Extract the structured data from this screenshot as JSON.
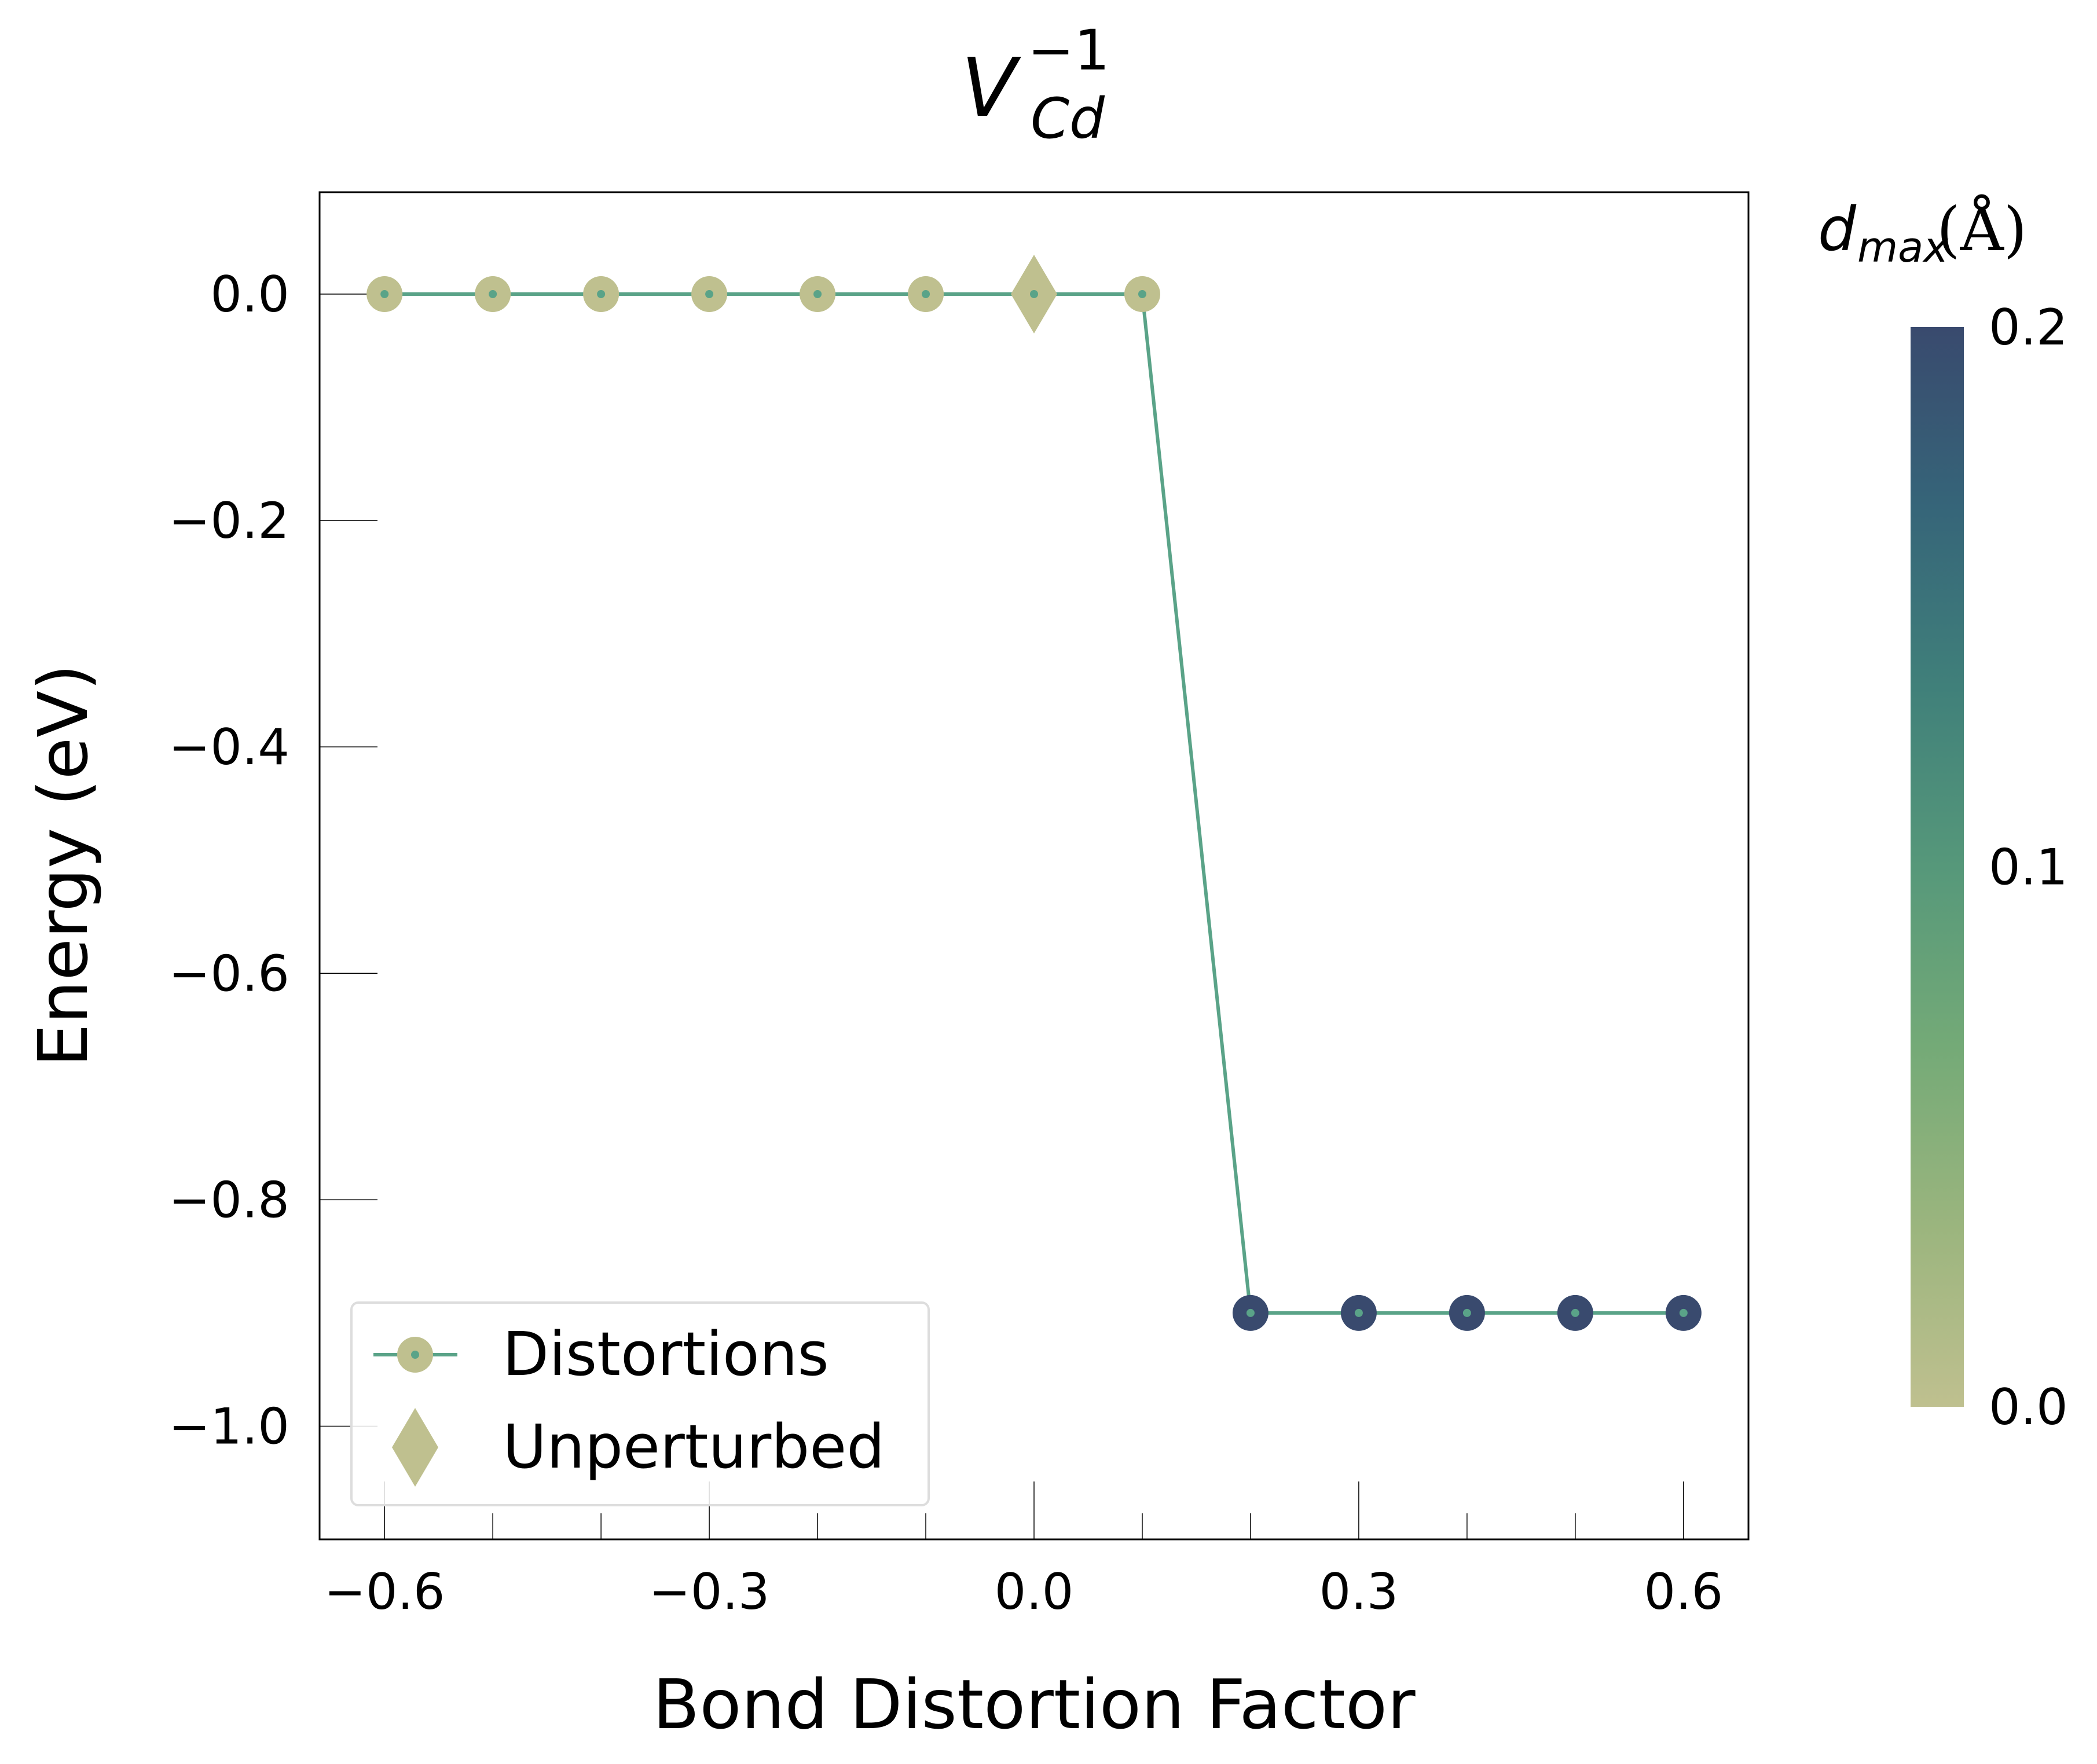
{
  "chart_data": {
    "type": "line",
    "title": {
      "base": "V",
      "superscript": "−1",
      "subscript": "Cd"
    },
    "xlabel": "Bond Distortion Factor",
    "ylabel": "Energy (eV)",
    "xlim": [
      -0.66,
      0.66
    ],
    "ylim": [
      -1.1,
      0.09
    ],
    "xticks": [
      -0.6,
      -0.3,
      0.0,
      0.3,
      0.6
    ],
    "xtick_labels": [
      "−0.6",
      "−0.3",
      "0.0",
      "0.3",
      "0.6"
    ],
    "x_minor_ticks": [
      -0.5,
      -0.4,
      -0.2,
      -0.1,
      0.1,
      0.2,
      0.4,
      0.5
    ],
    "yticks": [
      0.0,
      -0.2,
      -0.4,
      -0.6,
      -0.8,
      -1.0
    ],
    "ytick_labels": [
      "0.0",
      "−0.2",
      "−0.4",
      "−0.6",
      "−0.8",
      "−1.0"
    ],
    "grid": false,
    "legend": {
      "position": "bottom-left",
      "entries": [
        "Distortions",
        "Unperturbed"
      ]
    },
    "series": [
      {
        "name": "Distortions",
        "line_color": "#5aa388",
        "x": [
          -0.6,
          -0.5,
          -0.4,
          -0.3,
          -0.2,
          -0.1,
          0.1,
          0.2,
          0.3,
          0.4,
          0.5,
          0.6
        ],
        "y": [
          0.0,
          0.0,
          0.0,
          0.0,
          0.0,
          0.0,
          0.0,
          -0.9,
          -0.9,
          -0.9,
          -0.9,
          -0.9
        ],
        "d_max": [
          0.0,
          0.0,
          0.0,
          0.0,
          0.0,
          0.0,
          0.0,
          0.2,
          0.2,
          0.2,
          0.2,
          0.2
        ]
      },
      {
        "name": "Unperturbed",
        "marker": "diamond",
        "x": [
          0.0
        ],
        "y": [
          0.0
        ],
        "d_max": [
          0.0
        ]
      }
    ],
    "colorbar": {
      "label_main": "d",
      "label_sub": "max",
      "label_unit": " (Å)",
      "range": [
        0.0,
        0.2
      ],
      "ticks": [
        0.0,
        0.1,
        0.2
      ],
      "tick_labels": [
        "0.0",
        "0.1",
        "0.2"
      ],
      "colors": [
        "#bfc08f",
        "#9bb57e",
        "#74aa77",
        "#56987a",
        "#40807a",
        "#366579",
        "#394a6e"
      ]
    }
  }
}
